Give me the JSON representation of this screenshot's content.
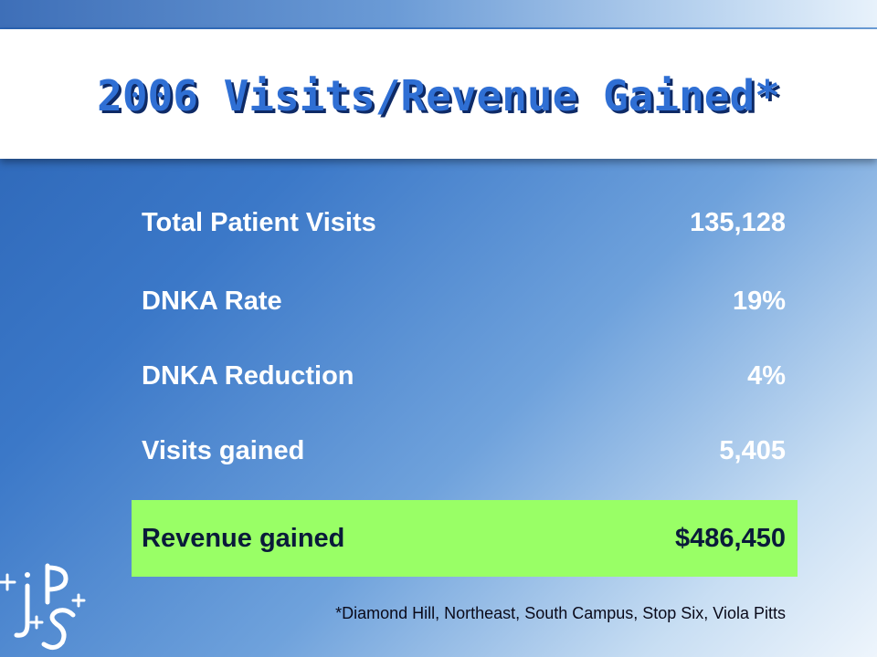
{
  "slide": {
    "title": "2006 Visits/Revenue Gained*",
    "rows": [
      {
        "label": "Total Patient Visits",
        "value": "135,128"
      },
      {
        "label": "DNKA Rate",
        "value": "19%"
      },
      {
        "label": "DNKA Reduction",
        "value": "4%"
      },
      {
        "label": "Visits gained",
        "value": "5,405"
      }
    ],
    "highlight": {
      "label": "Revenue gained",
      "value": "$486,450"
    },
    "footnote": "*Diamond Hill, Northeast, South Campus, Stop Six, Viola Pitts",
    "logo": {
      "icon": "jps-logo-icon"
    }
  },
  "colors": {
    "title": "#2f6fd4",
    "title_shadow": "#0e2a66",
    "highlight_bg": "#99ff66",
    "row_text": "#ffffff"
  }
}
